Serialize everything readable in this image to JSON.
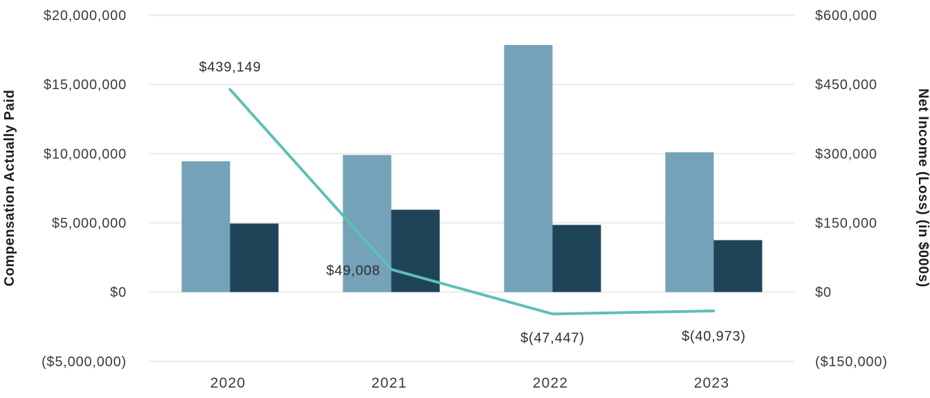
{
  "chart_data": {
    "type": "bar",
    "subtype": "grouped-bars-with-overlay-line",
    "title": "",
    "categories": [
      "2020",
      "2021",
      "2022",
      "2023"
    ],
    "bar_series": [
      {
        "name": "light-blue-bars",
        "color": "#74A2B8",
        "axis": "left",
        "values": [
          9450000,
          9900000,
          17850000,
          10100000
        ]
      },
      {
        "name": "dark-blue-bars",
        "color": "#1F4458",
        "axis": "left",
        "values": [
          4950000,
          5950000,
          4850000,
          3750000
        ]
      }
    ],
    "line_series": {
      "name": "net-income-line",
      "color": "#5FBFB6",
      "axis": "right",
      "values": [
        439149,
        49008,
        -47447,
        -40973
      ],
      "point_labels": [
        "$439,149",
        "$49,008",
        "$(47,447)",
        "$(40,973)"
      ]
    },
    "left_axis": {
      "title": "Compensation Actually Paid",
      "range": [
        -5000000,
        20000000
      ],
      "tick_values": [
        20000000,
        15000000,
        10000000,
        5000000,
        0,
        -5000000
      ],
      "tick_labels": [
        "$20,000,000",
        "$15,000,000",
        "$10,000,000",
        "$5,000,000",
        "$0",
        "($5,000,000)"
      ]
    },
    "right_axis": {
      "title": "Net Income (Loss) (in $000s)",
      "range": [
        -150000,
        600000
      ],
      "tick_values": [
        600000,
        450000,
        300000,
        150000,
        0,
        -150000
      ],
      "tick_labels": [
        "$600,000",
        "$450,000",
        "$300,000",
        "$150,000",
        "$0",
        "($150,000)"
      ]
    },
    "grid": {
      "show": true,
      "color": "#E9E9E9"
    },
    "legend": {
      "show": false
    },
    "background_color": "#FFFFFF",
    "text_color": "#3A3A3A"
  }
}
